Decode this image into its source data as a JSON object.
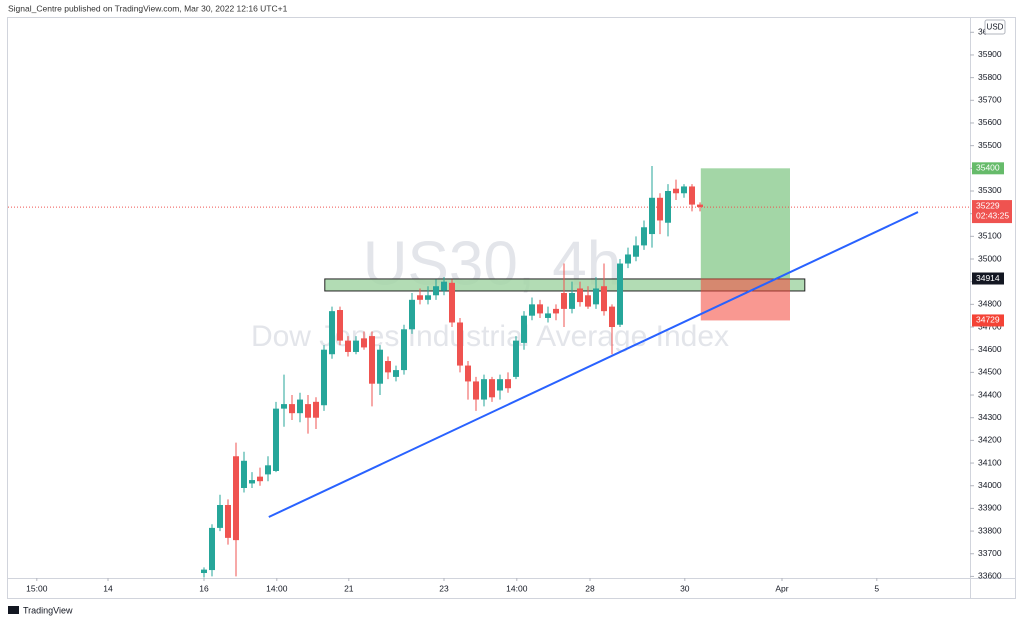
{
  "header": "Signal_Centre published on TradingView.com, Mar 30, 2022 12:16 UTC+1",
  "footer": "TradingView",
  "chart_data": {
    "type": "candlestick",
    "watermark": {
      "symbol": "US30, 4h",
      "description": "Dow Jones Industrial Average Index"
    },
    "currency": "USD",
    "up_color": "#26a69a",
    "down_color": "#ef5350",
    "x": [
      0,
      1,
      2,
      3,
      4,
      5,
      6,
      7,
      8,
      9,
      10,
      11,
      12,
      13,
      14,
      15,
      16,
      17,
      18,
      19,
      20,
      21,
      22,
      23,
      24,
      25,
      26,
      27,
      28,
      29,
      30,
      31,
      32,
      33,
      34,
      35,
      36,
      37,
      38,
      39,
      40,
      41,
      42,
      43,
      44,
      45,
      46,
      47,
      48,
      49,
      50,
      51,
      52,
      53,
      54,
      55,
      56,
      57,
      58,
      59,
      60,
      61,
      62
    ],
    "open": [
      33615,
      33628,
      33814,
      33915,
      34130,
      33990,
      34010,
      34040,
      34050,
      34065,
      34340,
      34360,
      34320,
      34360,
      34370,
      34355,
      34580,
      34775,
      34640,
      34590,
      34650,
      34660,
      34450,
      34550,
      34480,
      34510,
      34690,
      34840,
      34820,
      34840,
      34860,
      34895,
      34720,
      34530,
      34460,
      34380,
      34470,
      34420,
      34470,
      34480,
      34630,
      34750,
      34800,
      34740,
      34780,
      34850,
      34780,
      34870,
      34840,
      34800,
      34880,
      34790,
      34710,
      34980,
      35010,
      35060,
      35110,
      35270,
      35160,
      35310,
      35290,
      35320,
      35240
    ],
    "high": [
      33640,
      33830,
      33960,
      33940,
      34190,
      34150,
      34060,
      34080,
      34130,
      34370,
      34490,
      34400,
      34410,
      34400,
      34390,
      34620,
      34790,
      34790,
      34660,
      34660,
      34680,
      34680,
      34620,
      34570,
      34530,
      34710,
      34850,
      34870,
      34880,
      34910,
      34920,
      34910,
      34740,
      34550,
      34480,
      34490,
      34480,
      34490,
      34500,
      34660,
      34770,
      34830,
      34820,
      34790,
      34800,
      34980,
      34900,
      34900,
      34880,
      34920,
      34980,
      34800,
      35000,
      35050,
      35100,
      35170,
      35410,
      35290,
      35330,
      35350,
      35330,
      35330,
      35250
    ],
    "low": [
      33595,
      33600,
      33800,
      33740,
      33600,
      33970,
      33990,
      34000,
      34020,
      34060,
      34260,
      34290,
      34280,
      34230,
      34250,
      34330,
      34560,
      34620,
      34570,
      34580,
      34600,
      34350,
      34400,
      34470,
      34460,
      34490,
      34670,
      34800,
      34800,
      34820,
      34840,
      34700,
      34500,
      34380,
      34330,
      34350,
      34370,
      34380,
      34410,
      34470,
      34600,
      34730,
      34740,
      34720,
      34730,
      34700,
      34760,
      34790,
      34780,
      34780,
      34750,
      34580,
      34700,
      34960,
      34990,
      35040,
      35050,
      35110,
      35100,
      35260,
      35270,
      35210,
      35210
    ],
    "close": [
      33630,
      33814,
      33915,
      33770,
      33760,
      34110,
      34025,
      34020,
      34090,
      34340,
      34360,
      34320,
      34380,
      34300,
      34300,
      34600,
      34770,
      34640,
      34590,
      34640,
      34610,
      34450,
      34600,
      34500,
      34510,
      34690,
      34820,
      34820,
      34840,
      34880,
      34900,
      34720,
      34530,
      34460,
      34380,
      34470,
      34390,
      34470,
      34430,
      34640,
      34750,
      34800,
      34760,
      34760,
      34760,
      34780,
      34850,
      34810,
      34790,
      34870,
      34770,
      34700,
      34980,
      35020,
      35060,
      35140,
      35270,
      35170,
      35300,
      35290,
      35320,
      35240,
      35229
    ],
    "xlim": [
      -24.5,
      95.75
    ],
    "xticks": [
      {
        "value": -20.9,
        "label": "15:00"
      },
      {
        "value": -12,
        "label": "14"
      },
      {
        "value": 0,
        "label": "16"
      },
      {
        "value": 9.1,
        "label": "14:00"
      },
      {
        "value": 18.1,
        "label": "21"
      },
      {
        "value": 30,
        "label": "23"
      },
      {
        "value": 39.1,
        "label": "14:00"
      },
      {
        "value": 48.25,
        "label": "28"
      },
      {
        "value": 60.1,
        "label": "30"
      },
      {
        "value": 72.25,
        "label": "Apr"
      },
      {
        "value": 84.1,
        "label": "5"
      }
    ],
    "ylim": [
      33593,
      36063
    ],
    "yticks": [
      33600,
      33700,
      33800,
      33900,
      34000,
      34100,
      34200,
      34300,
      34400,
      34500,
      34600,
      34700,
      34800,
      34900,
      35000,
      35100,
      35200,
      35300,
      35400,
      35500,
      35600,
      35700,
      35800,
      35900,
      36000
    ],
    "zone": {
      "x": [
        15.1,
        75.1
      ],
      "y": [
        34859,
        34912
      ],
      "color": "#a5d6a7"
    },
    "position": {
      "x": [
        62.1,
        73.25
      ],
      "entry": 34914,
      "target": 35400,
      "stop": 34729,
      "target_color": "#66bb6a",
      "stop_color": "#f44336"
    },
    "trendline": {
      "x": [
        8.1,
        89.25
      ],
      "y": [
        33862,
        35207
      ],
      "color": "#2962ff"
    },
    "last_price": 35229,
    "countdown": "02:43:25",
    "grid": false
  }
}
